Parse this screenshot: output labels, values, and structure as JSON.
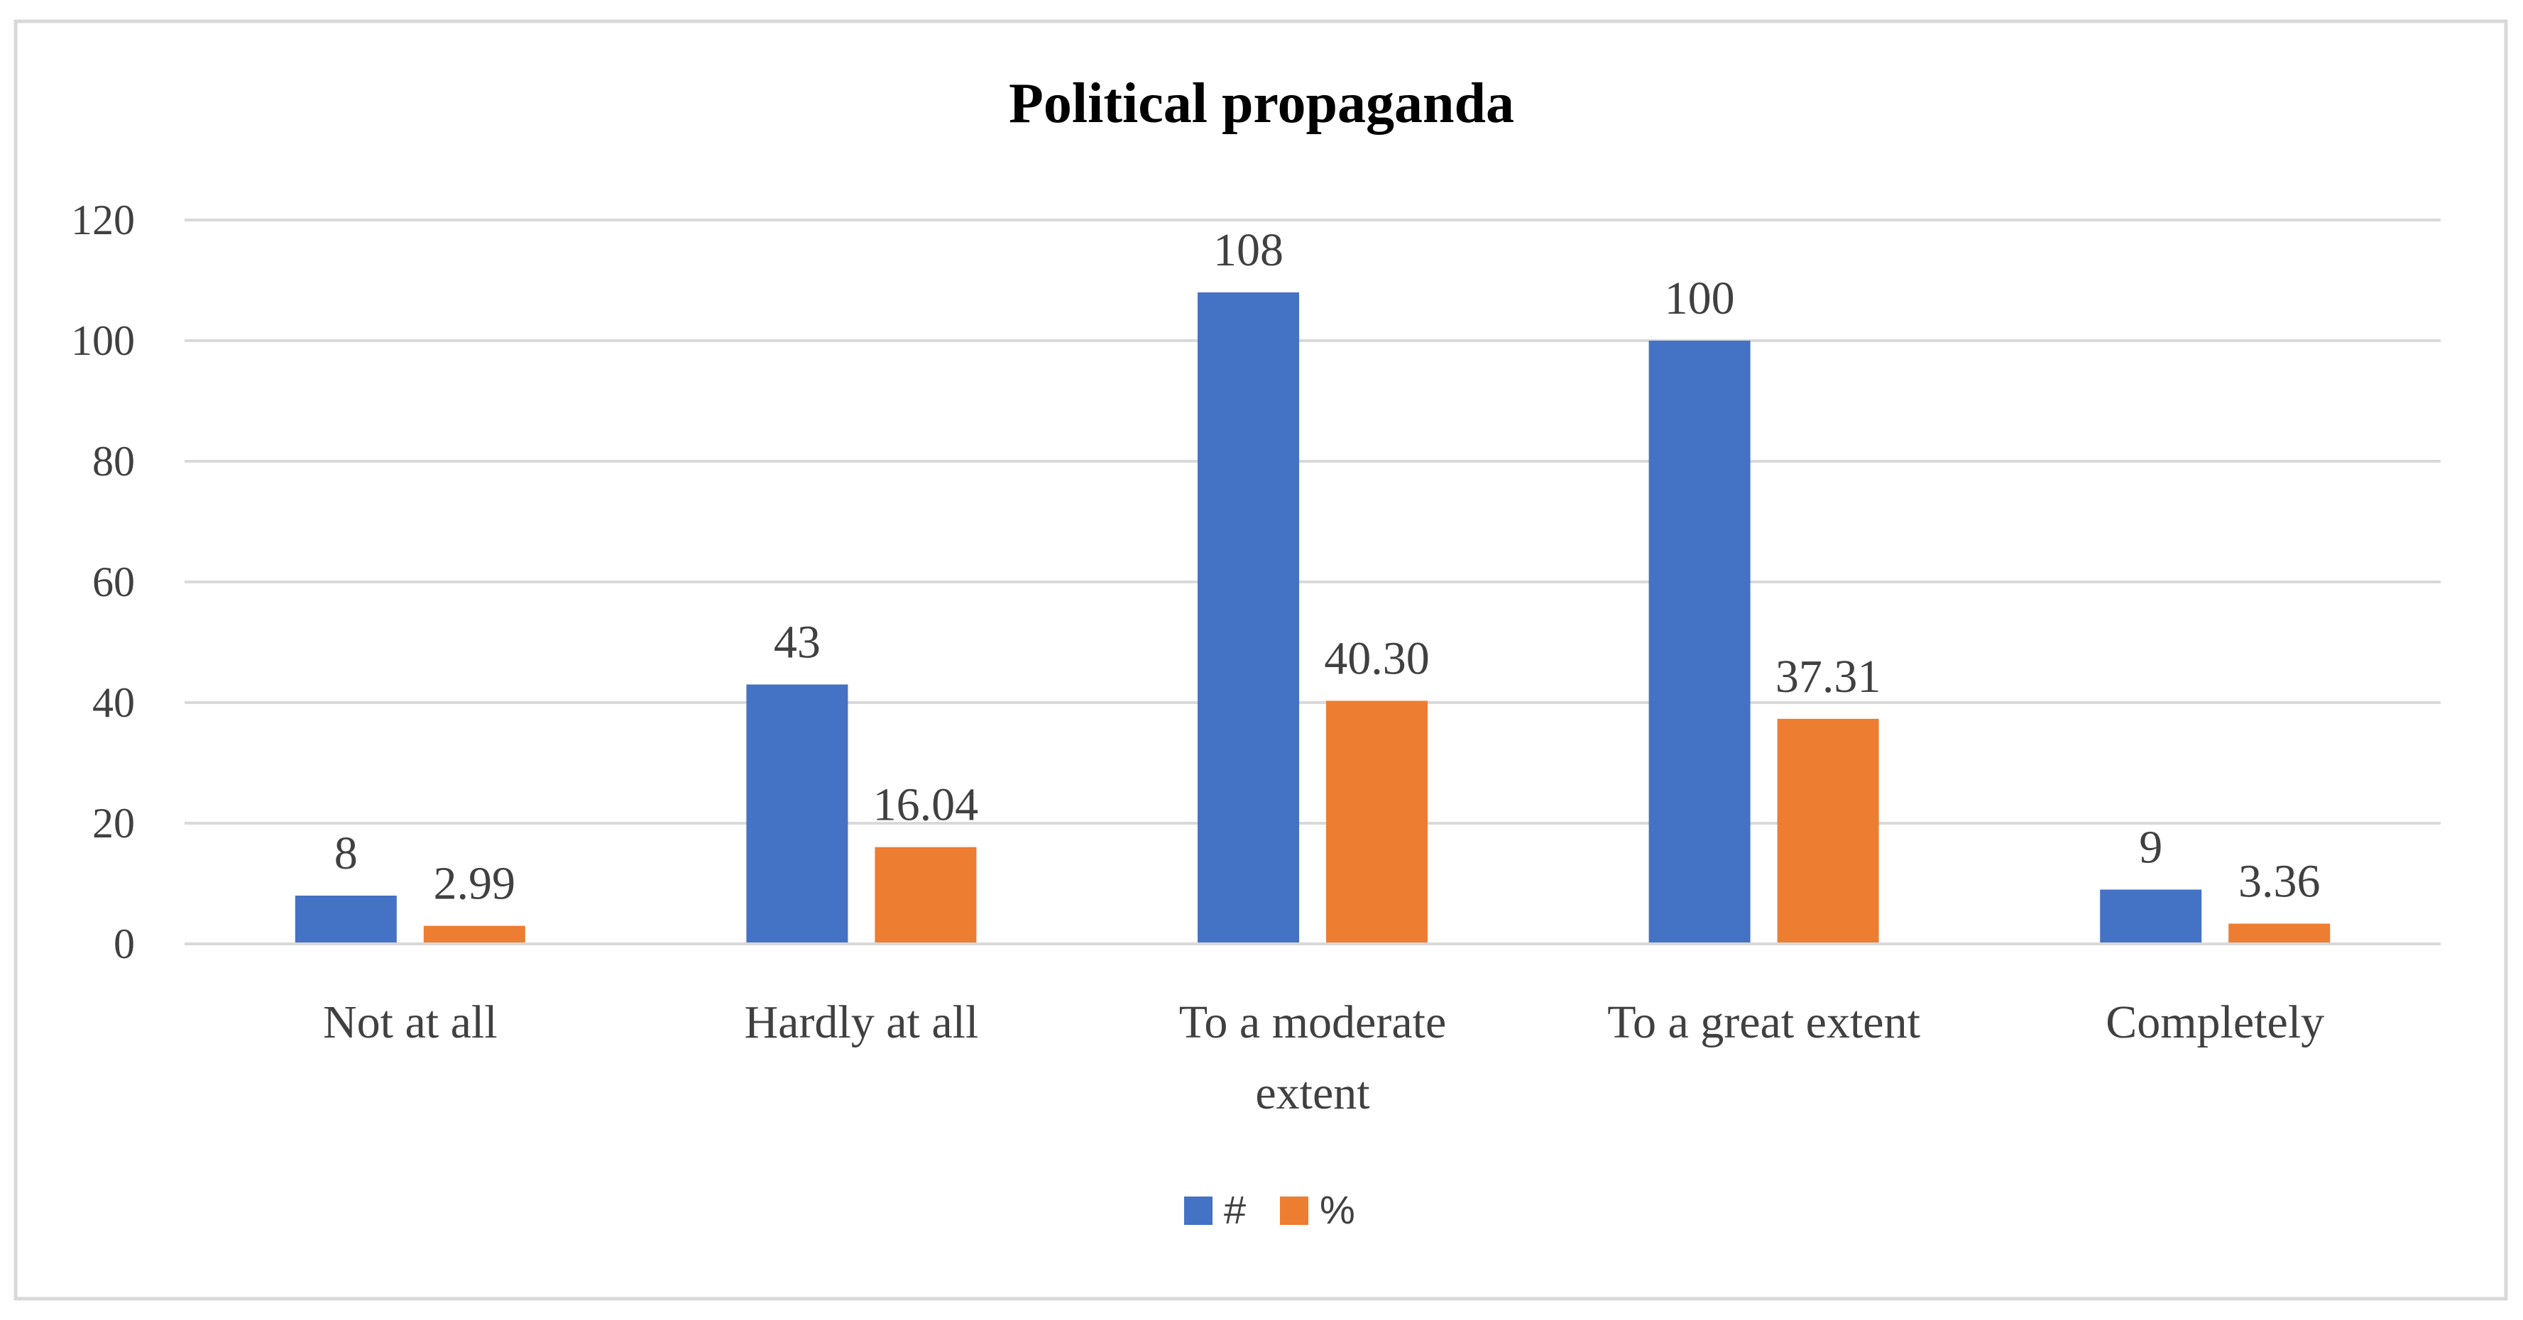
{
  "chart_data": {
    "type": "bar",
    "title": "Political propaganda",
    "categories": [
      [
        "Not at all"
      ],
      [
        "Hardly at all"
      ],
      [
        "To a moderate",
        "extent"
      ],
      [
        "To a great extent"
      ],
      [
        "Completely"
      ]
    ],
    "series": [
      {
        "name": "#",
        "color": "#4472C4",
        "values": [
          8,
          43,
          108,
          100,
          9
        ],
        "labels": [
          "8",
          "43",
          "108",
          "100",
          "9"
        ]
      },
      {
        "name": "%",
        "color": "#ED7D31",
        "values": [
          2.99,
          16.04,
          40.3,
          37.31,
          3.36
        ],
        "labels": [
          "2.99",
          "16.04",
          "40.30",
          "37.31",
          "3.36"
        ]
      }
    ],
    "ylim": [
      0,
      120
    ],
    "yticks": [
      0,
      20,
      40,
      60,
      80,
      100,
      120
    ],
    "grid": true,
    "legend": "bottom-center",
    "xlabel": "",
    "ylabel": ""
  },
  "colors": {
    "border": "#D9D9D9",
    "grid": "#D9D9D9",
    "text": "#404040",
    "title": "#000000"
  }
}
